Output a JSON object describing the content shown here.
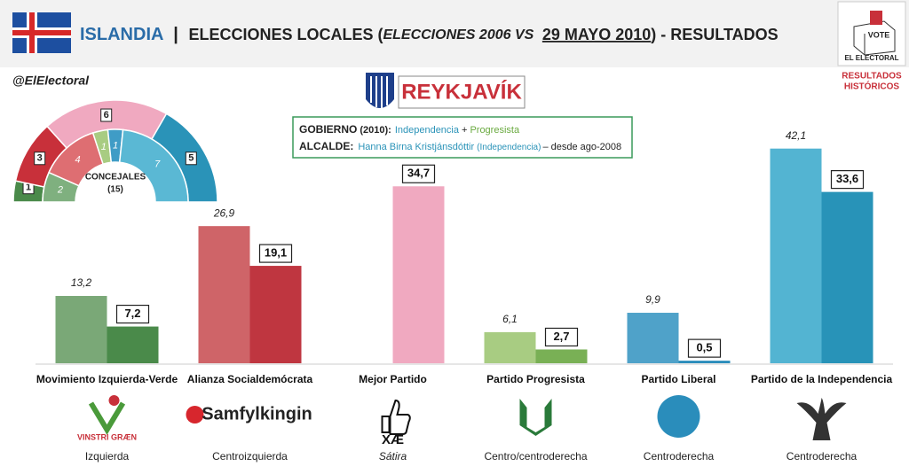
{
  "header": {
    "country": "ISLANDIA",
    "separator": "|",
    "title_start": "ELECCIONES LOCALES (",
    "title_compare": "ELECCIONES 2006 VS",
    "title_date": "29 MAYO 2010",
    "title_end": ") - RESULTADOS"
  },
  "brand": {
    "vote": "VOTE",
    "name": "EL ELECTORAL",
    "link_line1": "RESULTADOS",
    "link_line2": "HISTÓRICOS"
  },
  "handle": "@ElElectoral",
  "city": "REYKJAVÍK",
  "info": {
    "gov_label": "GOBIERNO",
    "gov_year": "(2010):",
    "gov_party1": "Independencia",
    "gov_plus": "+",
    "gov_party2": "Progresista",
    "mayor_label": "ALCALDE:",
    "mayor_name": "Hanna Birna Kristjánsdóttir",
    "mayor_party": "(Independencia)",
    "mayor_since": "– desde ago-2008"
  },
  "hemicycle": {
    "label": "CONCEJALES",
    "total": "(15)",
    "outer": {
      "values": [
        1,
        3,
        6,
        5
      ],
      "colors": [
        "#4a8a4a",
        "#c8303a",
        "#f0a9c0",
        "#2a93b8"
      ]
    },
    "inner": {
      "values": [
        2,
        4,
        1,
        1,
        7
      ],
      "colors": [
        "#7fb07f",
        "#de6e72",
        "#a8cc82",
        "#3f9cc6",
        "#5ab8d4"
      ]
    }
  },
  "chart_data": {
    "type": "bar",
    "categories": [
      "Movimiento Izquierda-Verde",
      "Alianza Socialdemócrata",
      "Mejor Partido",
      "Partido Progresista",
      "Partido Liberal",
      "Partido de la Independencia"
    ],
    "ylim": [
      0,
      45
    ],
    "series": [
      {
        "colors": [
          "#7aa877",
          "#cf6468",
          "#f0a9c0",
          "#a8cc82",
          "#4fa2c9",
          "#53b4d2"
        ],
        "values": [
          13.2,
          26.9,
          null,
          6.1,
          9.9,
          42.1
        ],
        "value_labels": [
          "13,2",
          "26,9",
          null,
          "6,1",
          "9,9",
          "42,1"
        ]
      },
      {
        "colors": [
          "#4a8a4a",
          "#bf3640",
          "#f0a9c0",
          "#79b055",
          "#2a8dbb",
          "#2893b8"
        ],
        "values": [
          7.2,
          19.1,
          34.7,
          2.7,
          0.5,
          33.6
        ],
        "value_labels": [
          "7,2",
          "19,1",
          "34,7",
          "2,7",
          "0,5",
          "33,6"
        ]
      }
    ],
    "logos": [
      "VINSTRI GRÆN",
      "Samfylkingin",
      "XÆ",
      null,
      null,
      null
    ],
    "ideologies": [
      "Izquierda",
      "Centroizquierda",
      "Sátira",
      "Centro/centroderecha",
      "Centroderecha",
      "Centroderecha"
    ]
  }
}
